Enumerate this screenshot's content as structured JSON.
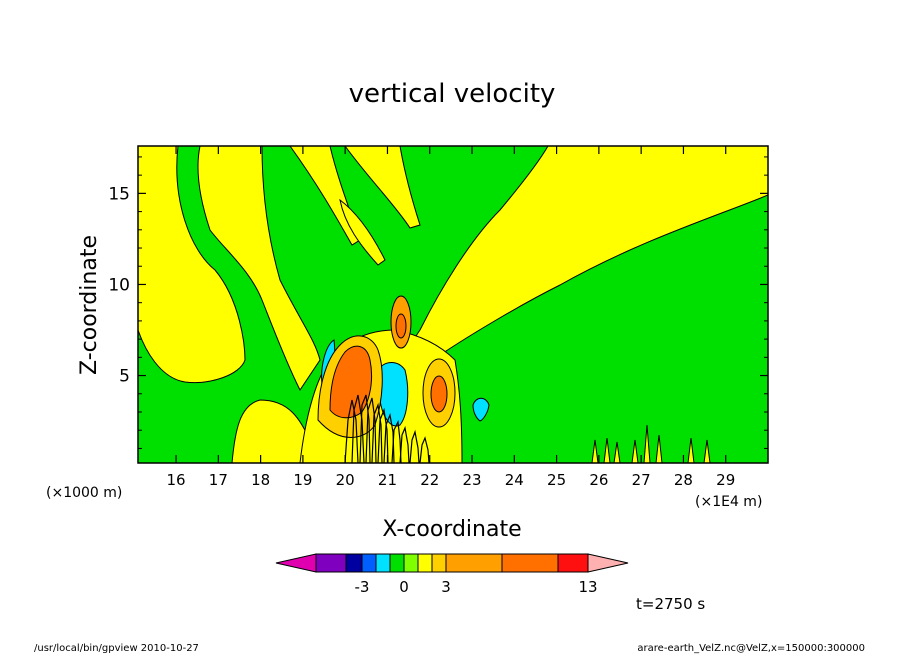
{
  "chart_data": {
    "type": "contour",
    "title": "vertical velocity",
    "xlabel": "X-coordinate",
    "ylabel": "Z-coordinate",
    "x_units": "(×1E4 m)",
    "y_units": "(×1000 m)",
    "xlim": [
      15.1,
      30.0
    ],
    "ylim": [
      0.2,
      17.6
    ],
    "xticks": [
      16,
      17,
      18,
      19,
      20,
      21,
      22,
      23,
      24,
      25,
      26,
      27,
      28,
      29
    ],
    "yticks": [
      5,
      10,
      15
    ],
    "time_label": "t=2750 s",
    "colorbar": {
      "colors": [
        "#e000b0",
        "#8000c0",
        "#0000a0",
        "#0060ff",
        "#00e0ff",
        "#00e000",
        "#80ff00",
        "#ffff00",
        "#ffd000",
        "#ffa000",
        "#ff7000",
        "#ff1010",
        "#ff7070",
        "#ffb0b0"
      ],
      "tick_labels": [
        "-3",
        "0",
        "3",
        "13"
      ]
    }
  },
  "footer": {
    "left": "/usr/local/bin/gpview   2010-10-27",
    "right": "arare-earth_VelZ.nc@VelZ,x=150000:300000"
  }
}
